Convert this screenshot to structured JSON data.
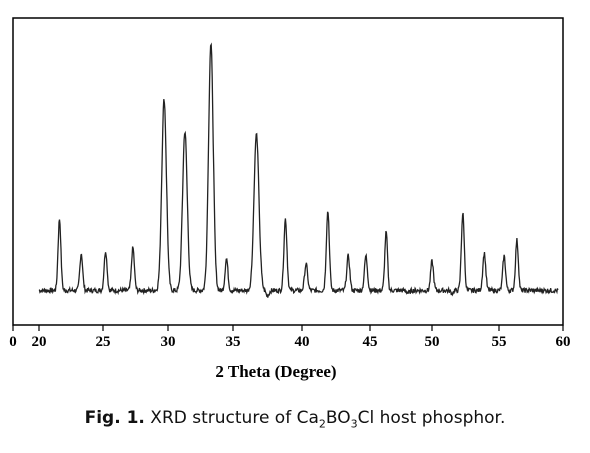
{
  "chart_data": {
    "type": "line",
    "title": "",
    "xlabel": "2 Theta (Degree)",
    "ylabel": "",
    "xlim": [
      0,
      60
    ],
    "x_tick_labels": [
      "0",
      "20",
      "25",
      "30",
      "35",
      "40",
      "45",
      "50",
      "55",
      "60"
    ],
    "x_tick_values": [
      0,
      20,
      25,
      30,
      35,
      40,
      45,
      50,
      55,
      60
    ],
    "grid": false,
    "legend": "none",
    "line_color": "#222222",
    "baseline": 0.07,
    "peaks": [
      {
        "x": 21.6,
        "y": 0.34
      },
      {
        "x": 23.3,
        "y": 0.21
      },
      {
        "x": 25.2,
        "y": 0.22
      },
      {
        "x": 27.3,
        "y": 0.23
      },
      {
        "x": 29.7,
        "y": 0.79
      },
      {
        "x": 31.3,
        "y": 0.67
      },
      {
        "x": 33.3,
        "y": 1.0
      },
      {
        "x": 34.5,
        "y": 0.19
      },
      {
        "x": 36.7,
        "y": 0.66
      },
      {
        "x": 37.5,
        "y": 0.05
      },
      {
        "x": 38.8,
        "y": 0.34
      },
      {
        "x": 40.3,
        "y": 0.17
      },
      {
        "x": 41.9,
        "y": 0.37
      },
      {
        "x": 43.4,
        "y": 0.2
      },
      {
        "x": 44.7,
        "y": 0.2
      },
      {
        "x": 46.3,
        "y": 0.29
      },
      {
        "x": 48.1,
        "y": 0.06
      },
      {
        "x": 50.0,
        "y": 0.18
      },
      {
        "x": 51.5,
        "y": 0.06
      },
      {
        "x": 52.3,
        "y": 0.36
      },
      {
        "x": 53.9,
        "y": 0.21
      },
      {
        "x": 55.4,
        "y": 0.2
      },
      {
        "x": 56.4,
        "y": 0.26
      }
    ]
  },
  "caption": {
    "fig_label": "Fig. 1.",
    "text_prefix": "XRD structure of Ca",
    "sub1": "2",
    "text_mid": "BO",
    "sub2": "3",
    "text_suffix": "Cl host phosphor."
  }
}
